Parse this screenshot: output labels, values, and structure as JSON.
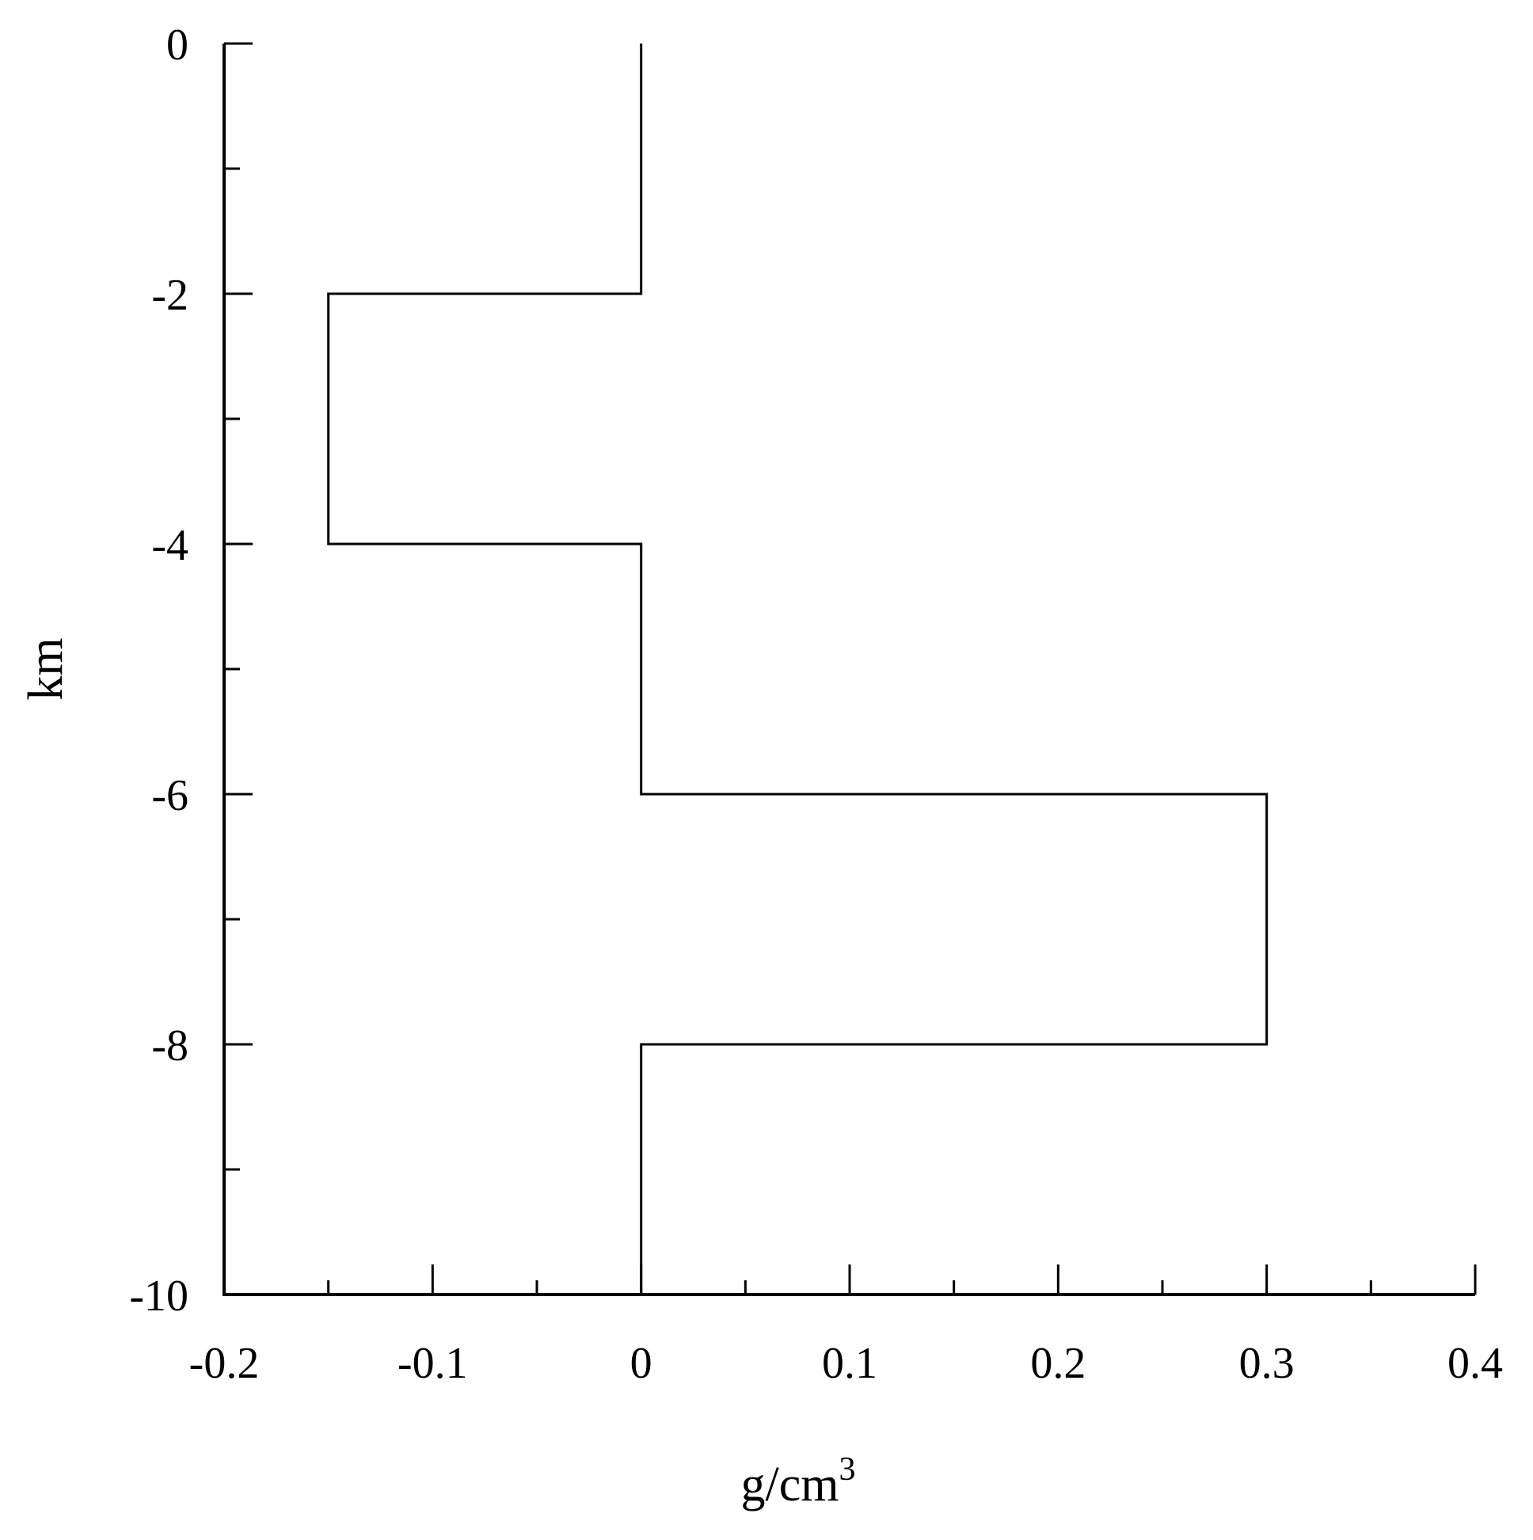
{
  "chart_data": {
    "type": "line",
    "title": "",
    "xlabel": "g/cm",
    "xlabel_superscript": "3",
    "ylabel": "km",
    "xlim": [
      -0.2,
      0.4
    ],
    "ylim": [
      -10,
      0
    ],
    "x_major_ticks": [
      -0.2,
      -0.1,
      0,
      0.1,
      0.2,
      0.3,
      0.4
    ],
    "x_minor_ticks": [
      -0.15,
      -0.05,
      0.05,
      0.15,
      0.25,
      0.35
    ],
    "y_major_ticks": [
      0,
      -2,
      -4,
      -6,
      -8,
      -10
    ],
    "y_minor_ticks": [
      -1,
      -3,
      -5,
      -7,
      -9
    ],
    "x_tick_labels": [
      "-0.2",
      "-0.1",
      "0",
      "0.1",
      "0.2",
      "0.3",
      "0.4"
    ],
    "y_tick_labels": [
      "0",
      "-2",
      "-4",
      "-6",
      "-8",
      "-10"
    ],
    "grid": false,
    "legend": "none",
    "series": [
      {
        "points": [
          [
            0,
            0
          ],
          [
            0,
            -2
          ],
          [
            -0.15,
            -2
          ],
          [
            -0.15,
            -4
          ],
          [
            0,
            -4
          ],
          [
            0,
            -6
          ],
          [
            0.3,
            -6
          ],
          [
            0.3,
            -8
          ],
          [
            0,
            -8
          ],
          [
            0,
            -10
          ]
        ],
        "color": "#000000"
      }
    ]
  }
}
